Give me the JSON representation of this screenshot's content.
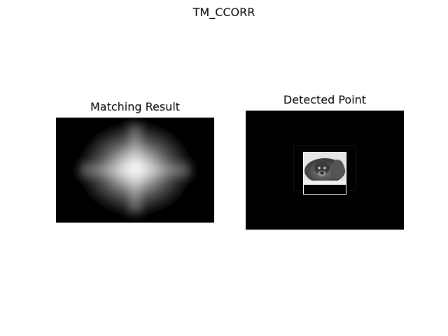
{
  "figure": {
    "suptitle": "TM_CCORR"
  },
  "panels": [
    {
      "title": "Matching Result"
    },
    {
      "title": "Detected Point"
    }
  ],
  "colors": {
    "background": "#ffffff",
    "image_background": "#000000",
    "match_rectangle": "#ffffff"
  },
  "icons": {
    "detected_image": "dog-photo"
  }
}
